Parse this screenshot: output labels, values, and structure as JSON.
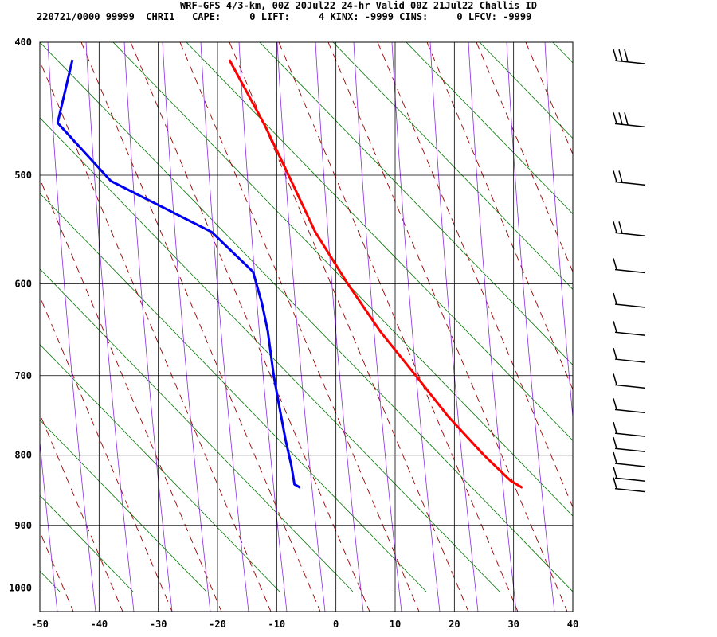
{
  "header": {
    "title": "WRF-GFS 4/3-km, 00Z 20Jul22 24-hr Valid 00Z 21Jul22 Challis ID",
    "info": "220721/0000 99999  CHRI1   CAPE:     0 LIFT:     4 KINX: -9999 CINS:     0 LFCV: -9999"
  },
  "chart_data": {
    "type": "line",
    "title": "WRF-GFS 4/3-km, 00Z 20Jul22 24-hr Valid 00Z 21Jul22 Challis ID",
    "xlabel": "",
    "ylabel": "",
    "xlim": [
      -50,
      40
    ],
    "ylim_pressure": [
      1040,
      400
    ],
    "y_scale": "log-pressure",
    "x_ticks": [
      "-50",
      "-40",
      "-30",
      "-20",
      "-10",
      "0",
      "10",
      "20",
      "30",
      "40"
    ],
    "y_ticks": [
      "400",
      "500",
      "600",
      "700",
      "800",
      "900",
      "1000"
    ],
    "grid": true,
    "skew_background": {
      "isotherms_color": "#007700",
      "dry_adiabats_color": "#990000",
      "moist_adiabats_color": "#8a2be2"
    },
    "series": [
      {
        "key": "temperature",
        "color": "#ff0000",
        "points": [
          {
            "p": 845,
            "x": 31.5
          },
          {
            "p": 835,
            "x": 29.5
          },
          {
            "p": 800,
            "x": 25
          },
          {
            "p": 750,
            "x": 19
          },
          {
            "p": 700,
            "x": 13.5
          },
          {
            "p": 650,
            "x": 7.5
          },
          {
            "p": 600,
            "x": 2
          },
          {
            "p": 550,
            "x": -3.5
          },
          {
            "p": 500,
            "x": -8
          },
          {
            "p": 460,
            "x": -12
          },
          {
            "p": 412,
            "x": -18
          }
        ]
      },
      {
        "key": "dewpoint",
        "color": "#0000ee",
        "points": [
          {
            "p": 845,
            "x": -6
          },
          {
            "p": 840,
            "x": -7
          },
          {
            "p": 815,
            "x": -7.5
          },
          {
            "p": 780,
            "x": -8.5
          },
          {
            "p": 740,
            "x": -9.5
          },
          {
            "p": 700,
            "x": -10.5
          },
          {
            "p": 650,
            "x": -11.5
          },
          {
            "p": 620,
            "x": -12.5
          },
          {
            "p": 588,
            "x": -14
          },
          {
            "p": 550,
            "x": -21
          },
          {
            "p": 505,
            "x": -38
          },
          {
            "p": 458,
            "x": -47
          },
          {
            "p": 412,
            "x": -44.5
          }
        ]
      }
    ],
    "wind_barbs": [
      {
        "p": 412,
        "feathers": 3
      },
      {
        "p": 458,
        "feathers": 3
      },
      {
        "p": 505,
        "feathers": 2
      },
      {
        "p": 550,
        "feathers": 2
      },
      {
        "p": 585,
        "feathers": 1
      },
      {
        "p": 620,
        "feathers": 1
      },
      {
        "p": 650,
        "feathers": 1
      },
      {
        "p": 680,
        "feathers": 1
      },
      {
        "p": 710,
        "feathers": 1
      },
      {
        "p": 740,
        "feathers": 1
      },
      {
        "p": 770,
        "feathers": 1
      },
      {
        "p": 790,
        "feathers": 1
      },
      {
        "p": 810,
        "feathers": 1
      },
      {
        "p": 830,
        "feathers": 1
      },
      {
        "p": 845,
        "feathers": 1
      }
    ]
  }
}
